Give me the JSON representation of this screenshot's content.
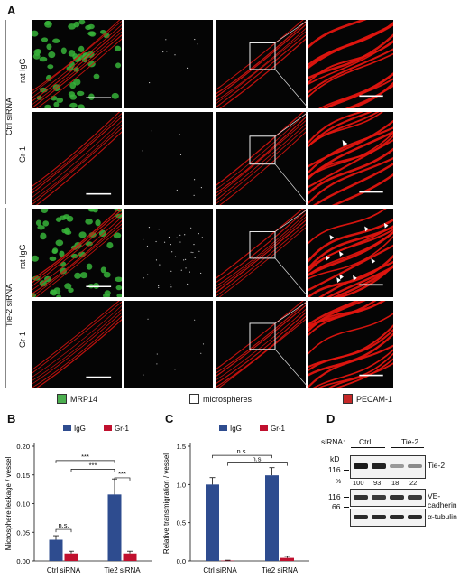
{
  "panel_A": {
    "letter": "A",
    "groups": [
      {
        "siRNA": "Ctrl siRNA",
        "rows": [
          "rat IgG",
          "Gr-1"
        ]
      },
      {
        "siRNA": "Tie-2 siRNA",
        "rows": [
          "rat IgG",
          "Gr-1"
        ]
      }
    ],
    "legend": [
      {
        "label": "MRP14",
        "color": "#4caf50"
      },
      {
        "label": "microspheres",
        "color": "#ffffff"
      },
      {
        "label": "PECAM-1",
        "color": "#c62828"
      }
    ]
  },
  "panel_B": {
    "letter": "B"
  },
  "panel_C": {
    "letter": "C"
  },
  "panel_D": {
    "letter": "D",
    "sirna_label": "siRNA:",
    "groups": [
      "Ctrl",
      "Tie-2"
    ],
    "kd_label": "kD",
    "percent_label": "%",
    "percents": [
      "100",
      "93",
      "18",
      "22"
    ],
    "markers": [
      "116",
      "116",
      "66"
    ],
    "bands": [
      "Tie-2",
      "VE-cadherin",
      "α-tubulin"
    ]
  },
  "chart_data": [
    {
      "type": "bar",
      "panel": "B",
      "categories": [
        "Ctrl siRNA",
        "Tie2 siRNA"
      ],
      "series": [
        {
          "name": "IgG",
          "values": [
            0.037,
            0.116
          ],
          "errors": [
            0.007,
            0.027
          ],
          "color": "#2e4c8f"
        },
        {
          "name": "Gr-1",
          "values": [
            0.013,
            0.013
          ],
          "errors": [
            0.004,
            0.004
          ],
          "color": "#c0102e"
        }
      ],
      "ylabel": "Microsphere leakage / vessel",
      "ylim": [
        0,
        0.2
      ],
      "yticks": [
        "0.00",
        "0.05",
        "0.10",
        "0.15",
        "0.20"
      ],
      "legend": "top",
      "annotations": [
        "n.s.",
        "***",
        "***",
        "***"
      ]
    },
    {
      "type": "bar",
      "panel": "C",
      "categories": [
        "Ctrl siRNA",
        "Tie2 siRNA"
      ],
      "series": [
        {
          "name": "IgG",
          "values": [
            1.0,
            1.12
          ],
          "errors": [
            0.09,
            0.1
          ],
          "color": "#2e4c8f"
        },
        {
          "name": "Gr-1",
          "values": [
            0.005,
            0.04
          ],
          "errors": [
            0.005,
            0.02
          ],
          "color": "#c0102e"
        }
      ],
      "ylabel": "Relative transmigration / vessel",
      "ylim": [
        0,
        1.5
      ],
      "yticks": [
        "0.0",
        "0.5",
        "1.0",
        "1.5"
      ],
      "legend": "top",
      "annotations": [
        "n.s.",
        "n.s."
      ]
    }
  ]
}
